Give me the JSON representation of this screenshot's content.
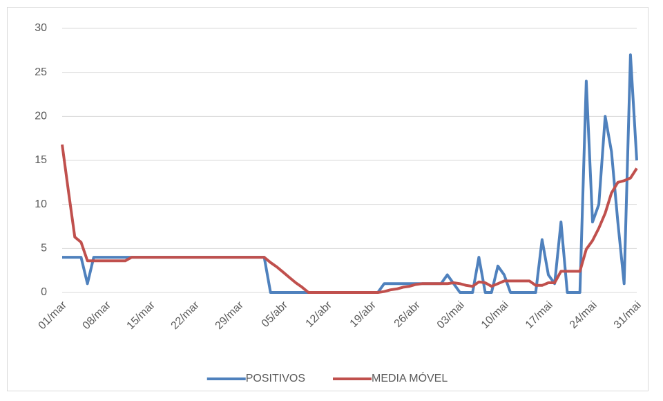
{
  "chart_data": {
    "type": "line",
    "categories": [
      "01/mar",
      null,
      null,
      null,
      null,
      null,
      null,
      "08/mar",
      null,
      null,
      null,
      null,
      null,
      null,
      "15/mar",
      null,
      null,
      null,
      null,
      null,
      null,
      "22/mar",
      null,
      null,
      null,
      null,
      null,
      null,
      "29/mar",
      null,
      null,
      null,
      null,
      null,
      null,
      "05/abr",
      null,
      null,
      null,
      null,
      null,
      null,
      "12/abr",
      null,
      null,
      null,
      null,
      null,
      null,
      "19/abr",
      null,
      null,
      null,
      null,
      null,
      null,
      "26/abr",
      null,
      null,
      null,
      null,
      null,
      null,
      "03/mai",
      null,
      null,
      null,
      null,
      null,
      null,
      "10/mai",
      null,
      null,
      null,
      null,
      null,
      null,
      "17/mai",
      null,
      null,
      null,
      null,
      null,
      null,
      "24/mai",
      null,
      null,
      null,
      null,
      null,
      null,
      "31/mai"
    ],
    "series": [
      {
        "name": "POSITIVOS",
        "color": "#4f81bd",
        "values": [
          4,
          4,
          4,
          4,
          1,
          4,
          4,
          4,
          4,
          4,
          4,
          4,
          4,
          4,
          4,
          4,
          4,
          4,
          4,
          4,
          4,
          4,
          4,
          4,
          4,
          4,
          4,
          4,
          4,
          4,
          4,
          4,
          4,
          0,
          0,
          0,
          0,
          0,
          0,
          0,
          0,
          0,
          0,
          0,
          0,
          0,
          0,
          0,
          0,
          0,
          0,
          1,
          1,
          1,
          1,
          1,
          1,
          1,
          1,
          1,
          1,
          2,
          1,
          0,
          0,
          0,
          4,
          0,
          0,
          3,
          2,
          0,
          0,
          0,
          0,
          0,
          6,
          2,
          1,
          8,
          0,
          0,
          0,
          24,
          8,
          10,
          20,
          16,
          8,
          1,
          27,
          15
        ]
      },
      {
        "name": "MEDIA MÓVEL",
        "color": "#c0504d",
        "values": [
          16.8,
          11.5,
          6.3,
          5.7,
          3.6,
          3.6,
          3.6,
          3.6,
          3.6,
          3.6,
          3.6,
          4,
          4,
          4,
          4,
          4,
          4,
          4,
          4,
          4,
          4,
          4,
          4,
          4,
          4,
          4,
          4,
          4,
          4,
          4,
          4,
          4,
          4,
          3.4,
          2.9,
          2.3,
          1.7,
          1.1,
          0.6,
          0,
          0,
          0,
          0,
          0,
          0,
          0,
          0,
          0,
          0,
          0,
          0,
          0.1,
          0.3,
          0.4,
          0.6,
          0.7,
          0.9,
          1,
          1,
          1,
          1,
          1,
          1.1,
          1,
          0.8,
          0.7,
          1.2,
          1.1,
          0.7,
          1,
          1.3,
          1.3,
          1.3,
          1.3,
          1.3,
          0.8,
          0.8,
          1.1,
          1.1,
          2.4,
          2.4,
          2.4,
          2.4,
          4.9,
          5.9,
          7.3,
          9,
          11.3,
          12.5,
          12.7,
          13,
          14.1
        ]
      }
    ],
    "ylim": [
      0,
      30
    ],
    "yticks": [
      0,
      5,
      10,
      15,
      20,
      25,
      30
    ],
    "grid": true,
    "legend": "bottom"
  }
}
